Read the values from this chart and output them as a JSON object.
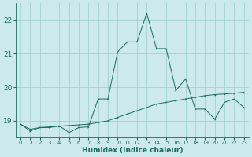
{
  "xlabel": "Humidex (Indice chaleur)",
  "background_color": "#cce9ec",
  "grid_color": "#99cccc",
  "line_color": "#1a6b5a",
  "xlim": [
    -0.5,
    23.5
  ],
  "ylim": [
    18.5,
    22.5
  ],
  "yticks": [
    19,
    20,
    21,
    22
  ],
  "xticks": [
    0,
    1,
    2,
    3,
    4,
    5,
    6,
    7,
    8,
    9,
    10,
    11,
    12,
    13,
    14,
    15,
    16,
    17,
    18,
    19,
    20,
    21,
    22,
    23
  ],
  "series1_x": [
    0,
    1,
    2,
    3,
    4,
    5,
    6,
    7,
    8,
    9,
    10,
    11,
    12,
    13,
    14,
    15,
    16,
    17,
    18,
    19,
    20,
    21,
    22,
    23
  ],
  "series1_y": [
    18.9,
    18.75,
    18.8,
    18.82,
    18.84,
    18.86,
    18.88,
    18.9,
    18.95,
    19.0,
    19.1,
    19.2,
    19.3,
    19.4,
    19.5,
    19.55,
    19.6,
    19.65,
    19.7,
    19.75,
    19.78,
    19.8,
    19.82,
    19.85
  ],
  "series2_x": [
    0,
    1,
    2,
    3,
    4,
    5,
    6,
    7,
    8,
    9,
    10,
    11,
    12,
    13,
    14,
    15,
    16,
    17,
    18,
    19,
    20,
    21,
    22,
    23
  ],
  "series2_y": [
    18.9,
    18.7,
    18.8,
    18.8,
    18.85,
    18.65,
    18.8,
    18.82,
    19.65,
    19.65,
    21.05,
    21.35,
    21.35,
    22.2,
    21.15,
    21.15,
    19.9,
    20.25,
    19.35,
    19.35,
    19.05,
    19.55,
    19.65,
    19.4
  ],
  "xtick_fontsize": 5.0,
  "ytick_fontsize": 6.5,
  "xlabel_fontsize": 6.5
}
